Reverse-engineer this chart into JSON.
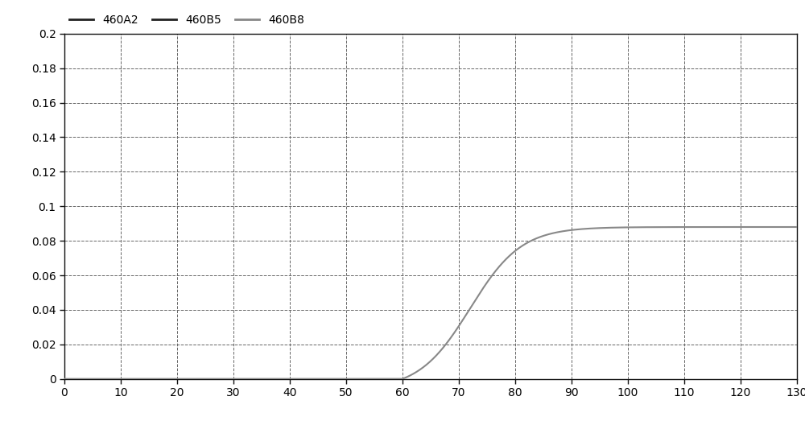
{
  "legend_labels": [
    "460A2",
    "460B5",
    "460B8"
  ],
  "legend_line_colors": [
    "#222222",
    "#222222",
    "#888888"
  ],
  "line_color": "#888888",
  "xlim": [
    0,
    130
  ],
  "ylim": [
    0,
    0.2
  ],
  "xticks": [
    0,
    10,
    20,
    30,
    40,
    50,
    60,
    70,
    80,
    90,
    100,
    110,
    120,
    130
  ],
  "yticks": [
    0,
    0.02,
    0.04,
    0.06,
    0.08,
    0.1,
    0.12,
    0.14,
    0.16,
    0.18,
    0.2
  ],
  "grid_color": "#666666",
  "background_color": "#ffffff",
  "curve_x_start": 60,
  "curve_x_end": 130,
  "curve_L": 0.088,
  "curve_k": 0.22,
  "curve_x0": 72
}
